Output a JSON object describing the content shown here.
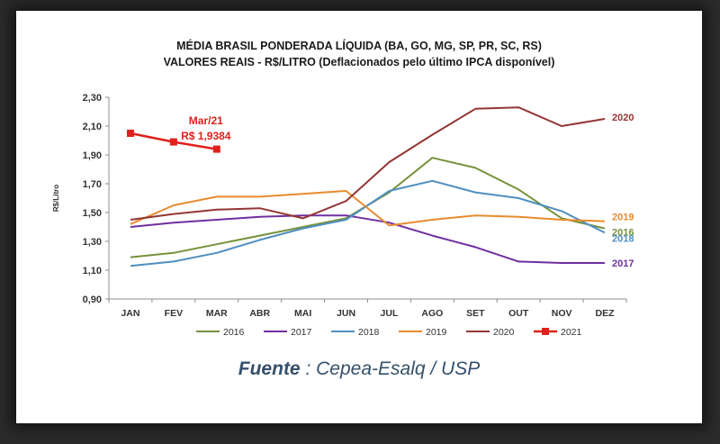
{
  "source": {
    "prefix": "Fuente",
    "text": " : Cepea-Esalq / USP"
  },
  "chart_data": {
    "type": "line",
    "title": "MÉDIA BRASIL PONDERADA LÍQUIDA (BA, GO, MG, SP, PR, SC, RS)",
    "subtitle": "VALORES REAIS - R$/LITRO (Deflacionados pelo último IPCA disponível)",
    "ylabel": "R$/Litro",
    "ylim": [
      0.9,
      2.3
    ],
    "yticks": [
      "0,90",
      "1,10",
      "1,30",
      "1,50",
      "1,70",
      "1,90",
      "2,10",
      "2,30"
    ],
    "ytick_values": [
      0.9,
      1.1,
      1.3,
      1.5,
      1.7,
      1.9,
      2.1,
      2.3
    ],
    "categories": [
      "JAN",
      "FEV",
      "MAR",
      "ABR",
      "MAI",
      "JUN",
      "JUL",
      "AGO",
      "SET",
      "OUT",
      "NOV",
      "DEZ"
    ],
    "grid": false,
    "legend": "bottom",
    "series": [
      {
        "name": "2016",
        "color": "#76923c",
        "values": [
          1.19,
          1.22,
          1.28,
          1.34,
          1.4,
          1.46,
          1.64,
          1.88,
          1.81,
          1.66,
          1.46,
          1.39
        ]
      },
      {
        "name": "2017",
        "color": "#7030a0",
        "values": [
          1.4,
          1.43,
          1.45,
          1.47,
          1.48,
          1.48,
          1.43,
          1.34,
          1.26,
          1.16,
          1.15,
          1.15
        ]
      },
      {
        "name": "2018",
        "color": "#4f8fc0",
        "values": [
          1.13,
          1.16,
          1.22,
          1.31,
          1.39,
          1.45,
          1.65,
          1.72,
          1.64,
          1.6,
          1.51,
          1.36
        ]
      },
      {
        "name": "2019",
        "color": "#e88b2e",
        "values": [
          1.42,
          1.55,
          1.61,
          1.61,
          1.63,
          1.65,
          1.41,
          1.45,
          1.48,
          1.47,
          1.45,
          1.44
        ]
      },
      {
        "name": "2020",
        "color": "#943634",
        "values": [
          1.45,
          1.49,
          1.52,
          1.53,
          1.46,
          1.58,
          1.85,
          2.04,
          2.22,
          2.23,
          2.1,
          2.15
        ]
      },
      {
        "name": "2021",
        "color": "#e0201c",
        "values": [
          2.05,
          1.99,
          1.94,
          null,
          null,
          null,
          null,
          null,
          null,
          null,
          null,
          null
        ],
        "markers": true
      }
    ],
    "end_labels": [
      {
        "series": "2020",
        "text": "2020"
      },
      {
        "series": "2019",
        "text": "2019"
      },
      {
        "series": "2016",
        "text": "2016"
      },
      {
        "series": "2018",
        "text": "2018"
      },
      {
        "series": "2017",
        "text": "2017"
      }
    ],
    "annotation": {
      "line1": "Mar/21",
      "line2": "R$ 1,9384",
      "color": "#e0201c",
      "category": "MAR"
    }
  }
}
